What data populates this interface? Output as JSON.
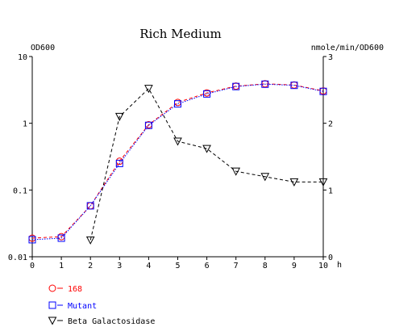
{
  "chart_data": {
    "type": "line",
    "title": "Rich Medium",
    "left_axis_label": "OD600",
    "right_axis_label": "nmole/min/OD600",
    "x_axis_unit": "h",
    "x_ticks": [
      "0",
      "1",
      "2",
      "3",
      "4",
      "5",
      "6",
      "7",
      "8",
      "9",
      "10"
    ],
    "xlim": [
      0,
      10
    ],
    "left_axis": {
      "scale": "log",
      "range": [
        0.01,
        10
      ],
      "ticks": [
        0.01,
        0.1,
        1,
        10
      ],
      "tick_labels": [
        "0.01",
        "0.1",
        "1",
        "10"
      ]
    },
    "right_axis": {
      "scale": "linear",
      "range": [
        0,
        3
      ],
      "ticks": [
        0,
        1,
        2,
        3
      ],
      "tick_labels": [
        "0",
        "1",
        "2",
        "3"
      ]
    },
    "series": [
      {
        "name": "168",
        "axis": "left",
        "marker": "circle",
        "color": "#ff0000",
        "line_style": "dashed",
        "x": [
          0,
          1,
          2,
          3,
          4,
          5,
          6,
          7,
          8,
          9,
          10
        ],
        "values": [
          0.019,
          0.02,
          0.058,
          0.27,
          0.95,
          2.05,
          2.85,
          3.6,
          3.9,
          3.75,
          3.05
        ]
      },
      {
        "name": "Mutant",
        "axis": "left",
        "marker": "square",
        "color": "#0000ff",
        "line_style": "dotted",
        "x": [
          0,
          1,
          2,
          3,
          4,
          5,
          6,
          7,
          8,
          9,
          10
        ],
        "values": [
          0.018,
          0.019,
          0.058,
          0.25,
          0.93,
          1.95,
          2.75,
          3.55,
          3.85,
          3.7,
          3.0
        ]
      },
      {
        "name": "Beta Galactosidase",
        "axis": "right",
        "marker": "triangle-down",
        "color": "#000000",
        "line_style": "dashed",
        "x": [
          2,
          3,
          4,
          5,
          6,
          7,
          8,
          9,
          10
        ],
        "values": [
          0.25,
          2.1,
          2.52,
          1.73,
          1.62,
          1.28,
          1.2,
          1.12,
          1.12
        ]
      }
    ],
    "legend": {
      "placement": "bottom-left",
      "entries": [
        "168",
        "Mutant",
        "Beta Galactosidase"
      ]
    },
    "grid": false
  }
}
